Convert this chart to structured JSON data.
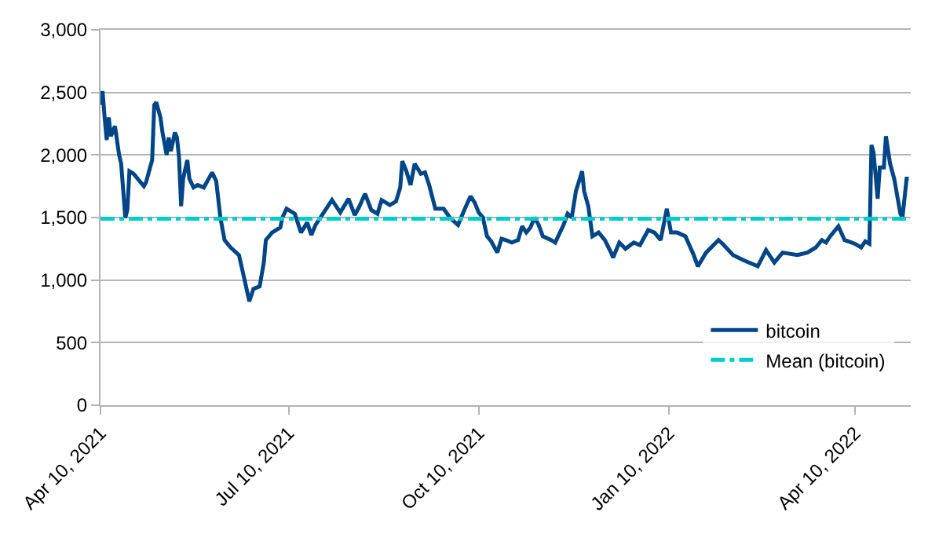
{
  "chart_data": {
    "type": "line",
    "x": [
      "2021-04-10",
      "2021-04-11",
      "2021-04-12",
      "2021-04-13",
      "2021-04-14",
      "2021-04-15",
      "2021-04-17",
      "2021-04-19",
      "2021-04-20",
      "2021-04-22",
      "2021-04-23",
      "2021-04-24",
      "2021-04-26",
      "2021-04-29",
      "2021-05-01",
      "2021-05-02",
      "2021-05-04",
      "2021-05-05",
      "2021-05-06",
      "2021-05-07",
      "2021-05-09",
      "2021-05-10",
      "2021-05-12",
      "2021-05-13",
      "2021-05-14",
      "2021-05-16",
      "2021-05-17",
      "2021-05-18",
      "2021-05-19",
      "2021-05-20",
      "2021-05-22",
      "2021-05-23",
      "2021-05-25",
      "2021-05-27",
      "2021-05-30",
      "2021-06-03",
      "2021-06-05",
      "2021-06-07",
      "2021-06-09",
      "2021-06-12",
      "2021-06-16",
      "2021-06-19",
      "2021-06-21",
      "2021-06-23",
      "2021-06-26",
      "2021-06-28",
      "2021-06-29",
      "2021-07-02",
      "2021-07-06",
      "2021-07-07",
      "2021-07-09",
      "2021-07-13",
      "2021-07-16",
      "2021-07-19",
      "2021-07-21",
      "2021-07-23",
      "2021-07-27",
      "2021-07-31",
      "2021-08-04",
      "2021-08-08",
      "2021-08-11",
      "2021-08-13",
      "2021-08-16",
      "2021-08-19",
      "2021-08-22",
      "2021-08-24",
      "2021-08-28",
      "2021-08-31",
      "2021-09-02",
      "2021-09-03",
      "2021-09-05",
      "2021-09-07",
      "2021-09-09",
      "2021-09-12",
      "2021-09-14",
      "2021-09-16",
      "2021-09-19",
      "2021-09-23",
      "2021-09-26",
      "2021-09-28",
      "2021-09-30",
      "2021-10-03",
      "2021-10-06",
      "2021-10-08",
      "2021-10-10",
      "2021-10-12",
      "2021-10-14",
      "2021-10-16",
      "2021-10-19",
      "2021-10-21",
      "2021-10-23",
      "2021-10-26",
      "2021-10-29",
      "2021-10-31",
      "2021-11-02",
      "2021-11-04",
      "2021-11-06",
      "2021-11-08",
      "2021-11-10",
      "2021-11-14",
      "2021-11-16",
      "2021-11-20",
      "2021-11-22",
      "2021-11-24",
      "2021-11-26",
      "2021-11-29",
      "2021-11-30",
      "2021-12-02",
      "2021-12-04",
      "2021-12-07",
      "2021-12-10",
      "2021-12-13",
      "2021-12-14",
      "2021-12-17",
      "2021-12-20",
      "2021-12-24",
      "2021-12-27",
      "2021-12-31",
      "2022-01-03",
      "2022-01-06",
      "2022-01-09",
      "2022-01-11",
      "2022-01-14",
      "2022-01-18",
      "2022-01-22",
      "2022-01-24",
      "2022-01-28",
      "2022-02-03",
      "2022-02-05",
      "2022-02-10",
      "2022-02-15",
      "2022-02-22",
      "2022-02-26",
      "2022-03-02",
      "2022-03-06",
      "2022-03-13",
      "2022-03-18",
      "2022-03-22",
      "2022-03-25",
      "2022-03-27",
      "2022-03-29",
      "2022-04-02",
      "2022-04-05",
      "2022-04-10",
      "2022-04-13",
      "2022-04-15",
      "2022-04-17",
      "2022-04-18",
      "2022-04-19",
      "2022-04-21",
      "2022-04-22",
      "2022-04-24",
      "2022-04-25",
      "2022-04-27",
      "2022-04-29",
      "2022-05-02",
      "2022-05-03",
      "2022-05-05",
      "2022-05-06"
    ],
    "series": [
      {
        "name": "bitcoin",
        "color": "#004586",
        "values": [
          2400,
          2510,
          2300,
          2120,
          2300,
          2150,
          2230,
          2000,
          1930,
          1500,
          1560,
          1870,
          1850,
          1790,
          1750,
          1780,
          1900,
          1960,
          2400,
          2420,
          2300,
          2180,
          2000,
          2140,
          2030,
          2180,
          2140,
          1980,
          1590,
          1810,
          1960,
          1810,
          1740,
          1760,
          1740,
          1860,
          1790,
          1500,
          1320,
          1260,
          1200,
          980,
          830,
          930,
          950,
          1140,
          1320,
          1380,
          1420,
          1500,
          1570,
          1530,
          1380,
          1460,
          1360,
          1440,
          1540,
          1640,
          1540,
          1650,
          1520,
          1580,
          1690,
          1560,
          1530,
          1640,
          1600,
          1630,
          1740,
          1950,
          1870,
          1760,
          1930,
          1850,
          1860,
          1760,
          1570,
          1570,
          1500,
          1470,
          1440,
          1560,
          1670,
          1620,
          1540,
          1500,
          1350,
          1310,
          1220,
          1330,
          1320,
          1300,
          1320,
          1430,
          1380,
          1420,
          1500,
          1440,
          1350,
          1320,
          1300,
          1440,
          1530,
          1500,
          1710,
          1870,
          1710,
          1590,
          1350,
          1380,
          1320,
          1220,
          1180,
          1300,
          1250,
          1300,
          1280,
          1400,
          1380,
          1320,
          1570,
          1380,
          1380,
          1350,
          1200,
          1110,
          1220,
          1320,
          1290,
          1200,
          1160,
          1110,
          1240,
          1140,
          1220,
          1200,
          1220,
          1260,
          1320,
          1300,
          1350,
          1430,
          1320,
          1290,
          1260,
          1310,
          1290,
          2080,
          2020,
          1650,
          1900,
          1900,
          2150,
          1930,
          1810,
          1530,
          1500,
          1810,
          1810
        ]
      }
    ],
    "ref_lines": [
      {
        "axis": "y",
        "value": 1490,
        "label": "Mean (bitcoin)",
        "color": "#00cccc",
        "line_style": "dashdot"
      }
    ],
    "xlim": [
      "2021-04-10",
      "2022-05-07"
    ],
    "xticks": [
      {
        "value": "2021-04-10",
        "label": "Apr 10, 2021"
      },
      {
        "value": "2021-07-10",
        "label": "Jul 10, 2021"
      },
      {
        "value": "2021-10-10",
        "label": "Oct 10, 2021"
      },
      {
        "value": "2022-01-10",
        "label": "Jan 10, 2022"
      },
      {
        "value": "2022-04-10",
        "label": "Apr 10, 2022"
      }
    ],
    "ylim": [
      0,
      3000
    ],
    "yticks": [
      {
        "value": 0,
        "label": "0"
      },
      {
        "value": 500,
        "label": "500"
      },
      {
        "value": 1000,
        "label": "1,000"
      },
      {
        "value": 1500,
        "label": "1,500"
      },
      {
        "value": 2000,
        "label": "2,000"
      },
      {
        "value": 2500,
        "label": "2,500"
      },
      {
        "value": 3000,
        "label": "3,000"
      }
    ],
    "grid": "y",
    "legend": "bottom right",
    "line_style": "solid",
    "marker": "none"
  }
}
